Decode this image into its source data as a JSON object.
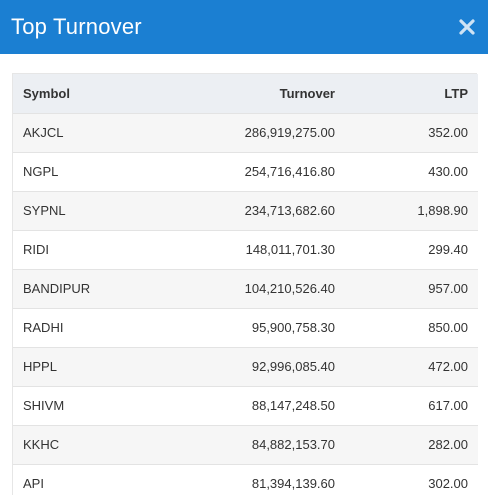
{
  "modal": {
    "title": "Top Turnover",
    "close_icon": "close-icon",
    "accent_color": "#1b7fd2"
  },
  "table": {
    "headers": {
      "symbol": "Symbol",
      "turnover": "Turnover",
      "ltp": "LTP"
    },
    "rows": [
      {
        "symbol": "AKJCL",
        "turnover": "286,919,275.00",
        "ltp": "352.00"
      },
      {
        "symbol": "NGPL",
        "turnover": "254,716,416.80",
        "ltp": "430.00"
      },
      {
        "symbol": "SYPNL",
        "turnover": "234,713,682.60",
        "ltp": "1,898.90"
      },
      {
        "symbol": "RIDI",
        "turnover": "148,011,701.30",
        "ltp": "299.40"
      },
      {
        "symbol": "BANDIPUR",
        "turnover": "104,210,526.40",
        "ltp": "957.00"
      },
      {
        "symbol": "RADHI",
        "turnover": "95,900,758.30",
        "ltp": "850.00"
      },
      {
        "symbol": "HPPL",
        "turnover": "92,996,085.40",
        "ltp": "472.00"
      },
      {
        "symbol": "SHIVM",
        "turnover": "88,147,248.50",
        "ltp": "617.00"
      },
      {
        "symbol": "KKHC",
        "turnover": "84,882,153.70",
        "ltp": "282.00"
      },
      {
        "symbol": "API",
        "turnover": "81,394,139.60",
        "ltp": "302.00"
      }
    ]
  }
}
